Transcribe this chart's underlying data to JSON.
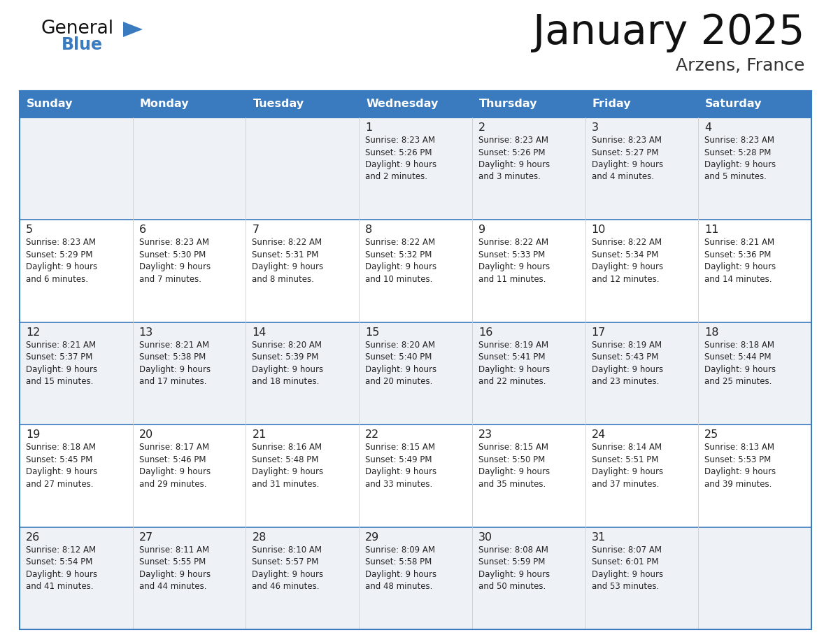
{
  "title": "January 2025",
  "subtitle": "Arzens, France",
  "header_color": "#3a7abf",
  "header_text_color": "#ffffff",
  "row_bg_odd": "#eef2f7",
  "row_bg_even": "#ffffff",
  "border_color": "#3a7abf",
  "text_color": "#222222",
  "days_of_week": [
    "Sunday",
    "Monday",
    "Tuesday",
    "Wednesday",
    "Thursday",
    "Friday",
    "Saturday"
  ],
  "weeks": [
    [
      {
        "day": null,
        "info": null
      },
      {
        "day": null,
        "info": null
      },
      {
        "day": null,
        "info": null
      },
      {
        "day": "1",
        "info": "Sunrise: 8:23 AM\nSunset: 5:26 PM\nDaylight: 9 hours\nand 2 minutes."
      },
      {
        "day": "2",
        "info": "Sunrise: 8:23 AM\nSunset: 5:26 PM\nDaylight: 9 hours\nand 3 minutes."
      },
      {
        "day": "3",
        "info": "Sunrise: 8:23 AM\nSunset: 5:27 PM\nDaylight: 9 hours\nand 4 minutes."
      },
      {
        "day": "4",
        "info": "Sunrise: 8:23 AM\nSunset: 5:28 PM\nDaylight: 9 hours\nand 5 minutes."
      }
    ],
    [
      {
        "day": "5",
        "info": "Sunrise: 8:23 AM\nSunset: 5:29 PM\nDaylight: 9 hours\nand 6 minutes."
      },
      {
        "day": "6",
        "info": "Sunrise: 8:23 AM\nSunset: 5:30 PM\nDaylight: 9 hours\nand 7 minutes."
      },
      {
        "day": "7",
        "info": "Sunrise: 8:22 AM\nSunset: 5:31 PM\nDaylight: 9 hours\nand 8 minutes."
      },
      {
        "day": "8",
        "info": "Sunrise: 8:22 AM\nSunset: 5:32 PM\nDaylight: 9 hours\nand 10 minutes."
      },
      {
        "day": "9",
        "info": "Sunrise: 8:22 AM\nSunset: 5:33 PM\nDaylight: 9 hours\nand 11 minutes."
      },
      {
        "day": "10",
        "info": "Sunrise: 8:22 AM\nSunset: 5:34 PM\nDaylight: 9 hours\nand 12 minutes."
      },
      {
        "day": "11",
        "info": "Sunrise: 8:21 AM\nSunset: 5:36 PM\nDaylight: 9 hours\nand 14 minutes."
      }
    ],
    [
      {
        "day": "12",
        "info": "Sunrise: 8:21 AM\nSunset: 5:37 PM\nDaylight: 9 hours\nand 15 minutes."
      },
      {
        "day": "13",
        "info": "Sunrise: 8:21 AM\nSunset: 5:38 PM\nDaylight: 9 hours\nand 17 minutes."
      },
      {
        "day": "14",
        "info": "Sunrise: 8:20 AM\nSunset: 5:39 PM\nDaylight: 9 hours\nand 18 minutes."
      },
      {
        "day": "15",
        "info": "Sunrise: 8:20 AM\nSunset: 5:40 PM\nDaylight: 9 hours\nand 20 minutes."
      },
      {
        "day": "16",
        "info": "Sunrise: 8:19 AM\nSunset: 5:41 PM\nDaylight: 9 hours\nand 22 minutes."
      },
      {
        "day": "17",
        "info": "Sunrise: 8:19 AM\nSunset: 5:43 PM\nDaylight: 9 hours\nand 23 minutes."
      },
      {
        "day": "18",
        "info": "Sunrise: 8:18 AM\nSunset: 5:44 PM\nDaylight: 9 hours\nand 25 minutes."
      }
    ],
    [
      {
        "day": "19",
        "info": "Sunrise: 8:18 AM\nSunset: 5:45 PM\nDaylight: 9 hours\nand 27 minutes."
      },
      {
        "day": "20",
        "info": "Sunrise: 8:17 AM\nSunset: 5:46 PM\nDaylight: 9 hours\nand 29 minutes."
      },
      {
        "day": "21",
        "info": "Sunrise: 8:16 AM\nSunset: 5:48 PM\nDaylight: 9 hours\nand 31 minutes."
      },
      {
        "day": "22",
        "info": "Sunrise: 8:15 AM\nSunset: 5:49 PM\nDaylight: 9 hours\nand 33 minutes."
      },
      {
        "day": "23",
        "info": "Sunrise: 8:15 AM\nSunset: 5:50 PM\nDaylight: 9 hours\nand 35 minutes."
      },
      {
        "day": "24",
        "info": "Sunrise: 8:14 AM\nSunset: 5:51 PM\nDaylight: 9 hours\nand 37 minutes."
      },
      {
        "day": "25",
        "info": "Sunrise: 8:13 AM\nSunset: 5:53 PM\nDaylight: 9 hours\nand 39 minutes."
      }
    ],
    [
      {
        "day": "26",
        "info": "Sunrise: 8:12 AM\nSunset: 5:54 PM\nDaylight: 9 hours\nand 41 minutes."
      },
      {
        "day": "27",
        "info": "Sunrise: 8:11 AM\nSunset: 5:55 PM\nDaylight: 9 hours\nand 44 minutes."
      },
      {
        "day": "28",
        "info": "Sunrise: 8:10 AM\nSunset: 5:57 PM\nDaylight: 9 hours\nand 46 minutes."
      },
      {
        "day": "29",
        "info": "Sunrise: 8:09 AM\nSunset: 5:58 PM\nDaylight: 9 hours\nand 48 minutes."
      },
      {
        "day": "30",
        "info": "Sunrise: 8:08 AM\nSunset: 5:59 PM\nDaylight: 9 hours\nand 50 minutes."
      },
      {
        "day": "31",
        "info": "Sunrise: 8:07 AM\nSunset: 6:01 PM\nDaylight: 9 hours\nand 53 minutes."
      },
      {
        "day": null,
        "info": null
      }
    ]
  ],
  "logo_general_color": "#111111",
  "logo_blue_color": "#3a7abf",
  "logo_triangle_color": "#3a7abf"
}
